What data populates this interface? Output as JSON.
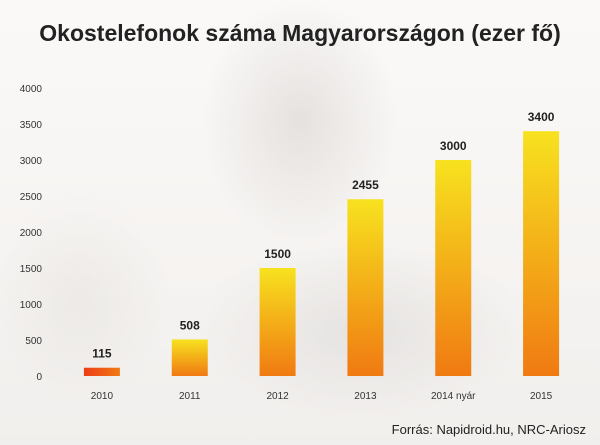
{
  "chart_data": {
    "type": "bar",
    "title": "Okostelefonok száma Magyarországon (ezer fő)",
    "categories": [
      "2010",
      "2011",
      "2012",
      "2013",
      "2014 nyár",
      "2015"
    ],
    "values": [
      115,
      508,
      1500,
      2455,
      3000,
      3400
    ],
    "data_labels": [
      "115",
      "508",
      "1500",
      "2455",
      "3000",
      "3400"
    ],
    "yticks": [
      "0",
      "500",
      "1000",
      "1500",
      "2000",
      "2500",
      "3000",
      "3500",
      "4000"
    ],
    "ylim": [
      0,
      4000
    ],
    "grid": false,
    "colors": {
      "bar_top": "#f7e21f",
      "bar_bottom": "#f07a12",
      "bar_first": "#ee3d18"
    }
  },
  "source": "Forrás: Napidroid.hu, NRC-Ariosz"
}
